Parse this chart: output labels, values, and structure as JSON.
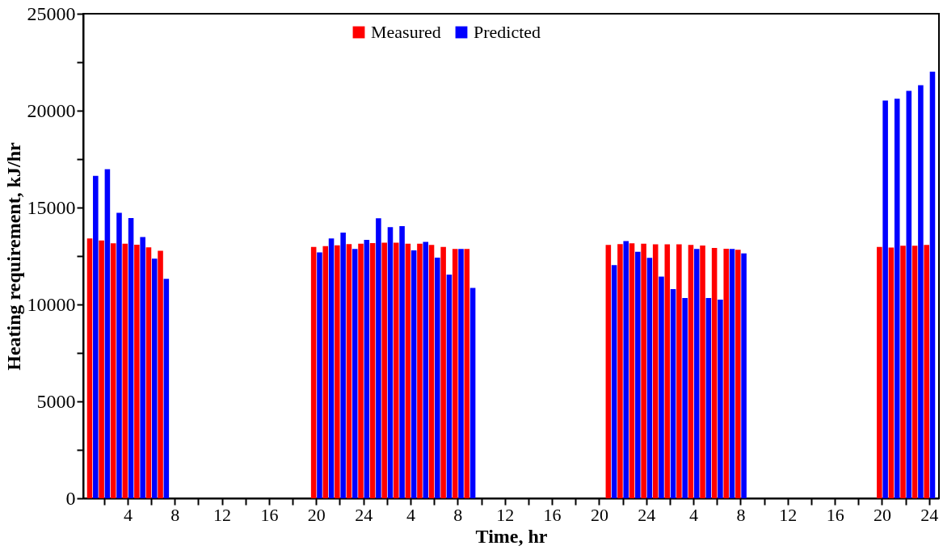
{
  "chart_data": {
    "type": "bar",
    "xlabel": "Time, hr",
    "ylabel": "Heating requirement, kJ/hr",
    "categories": [
      null,
      null,
      null,
      "4",
      null,
      null,
      null,
      "8",
      null,
      null,
      null,
      "12",
      null,
      null,
      null,
      "16",
      null,
      null,
      null,
      "20",
      null,
      null,
      null,
      "24",
      null,
      null,
      null,
      "4",
      null,
      null,
      null,
      "8",
      null,
      null,
      null,
      "12",
      null,
      null,
      null,
      "16",
      null,
      null,
      null,
      "20",
      null,
      null,
      null,
      "24",
      null,
      null,
      null,
      "4",
      null,
      null,
      null,
      "8",
      null,
      null,
      null,
      "12",
      null,
      null,
      null,
      "16",
      null,
      null,
      null,
      "20",
      null,
      null,
      null,
      "24"
    ],
    "ylim": [
      0,
      25000
    ],
    "yticks": [
      0,
      {
        "value": 2500,
        "label": null
      },
      5000,
      {
        "value": 7500,
        "label": null
      },
      10000,
      {
        "value": 12500,
        "label": null
      },
      15000,
      {
        "value": 17500,
        "label": null
      },
      20000,
      {
        "value": 22500,
        "label": null
      },
      25000
    ],
    "series": [
      {
        "name": "Measured",
        "color": "#ff0000",
        "values": [
          13410,
          13300,
          13160,
          13140,
          13080,
          12950,
          12770,
          null,
          null,
          null,
          null,
          null,
          null,
          null,
          null,
          null,
          null,
          null,
          null,
          12970,
          13010,
          13050,
          13110,
          13140,
          13170,
          13190,
          13190,
          13140,
          13140,
          13070,
          12970,
          12860,
          12860,
          null,
          null,
          null,
          null,
          null,
          null,
          null,
          null,
          null,
          null,
          null,
          13070,
          13110,
          13160,
          13140,
          13100,
          13100,
          13100,
          13070,
          13040,
          12920,
          12880,
          12820,
          null,
          null,
          null,
          null,
          null,
          null,
          null,
          null,
          null,
          null,
          null,
          12970,
          12940,
          13030,
          13030,
          13070
        ]
      },
      {
        "name": "Predicted",
        "color": "#0000ff",
        "values": [
          16640,
          16980,
          14730,
          14460,
          13480,
          12360,
          11320,
          null,
          null,
          null,
          null,
          null,
          null,
          null,
          null,
          null,
          null,
          null,
          null,
          12690,
          13410,
          13710,
          12860,
          13330,
          14450,
          13990,
          14040,
          12790,
          13230,
          12420,
          11540,
          12860,
          10850,
          null,
          null,
          null,
          null,
          null,
          null,
          null,
          null,
          null,
          null,
          null,
          12030,
          13270,
          12720,
          12410,
          11440,
          10790,
          10330,
          12860,
          10330,
          10250,
          12860,
          12640,
          null,
          null,
          null,
          null,
          null,
          null,
          null,
          null,
          null,
          null,
          null,
          20520,
          20610,
          21020,
          21310,
          22010
        ]
      }
    ],
    "legend": "top",
    "grid": false
  }
}
